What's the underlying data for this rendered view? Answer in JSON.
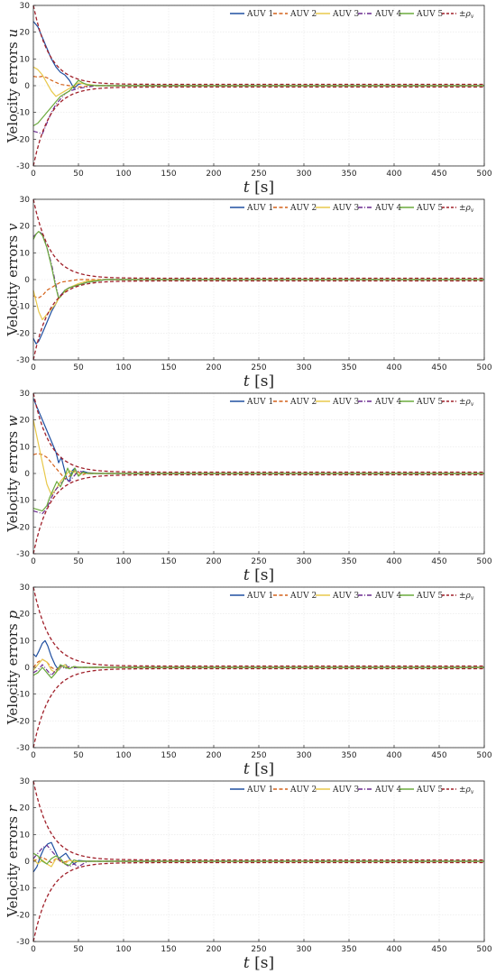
{
  "colors": {
    "AUV 1": "#1f4fa0",
    "AUV 2": "#d4621a",
    "AUV 3": "#e8c84a",
    "AUV 4": "#6a2a8f",
    "AUV 5": "#6aaa3c",
    "rho": "#a0202a"
  },
  "chart_data": [
    {
      "type": "line",
      "xlabel": "t [s]",
      "ylabel": "Velocity errors u",
      "xlim": [
        0,
        500
      ],
      "ylim": [
        -30,
        30
      ],
      "xticks": [
        0,
        50,
        100,
        150,
        200,
        250,
        300,
        350,
        400,
        450,
        500
      ],
      "yticks": [
        -30,
        -20,
        -10,
        0,
        10,
        20,
        30
      ],
      "grid": true,
      "legend_position": "top",
      "series": [
        {
          "name": "AUV 1",
          "style": "solid",
          "x": [
            0,
            5,
            10,
            15,
            20,
            25,
            30,
            35,
            40,
            45,
            50,
            55,
            60,
            70,
            80,
            100,
            500
          ],
          "y": [
            24,
            22,
            18,
            14,
            10,
            7,
            5,
            4,
            2,
            -1,
            0.5,
            1,
            0.3,
            0.1,
            0,
            0,
            0
          ]
        },
        {
          "name": "AUV 2",
          "style": "dashed",
          "x": [
            0,
            5,
            10,
            15,
            20,
            30,
            40,
            50,
            60,
            70,
            80,
            100,
            500
          ],
          "y": [
            3.5,
            3.2,
            3.5,
            3,
            2,
            0.5,
            0,
            -0.5,
            -0.2,
            0,
            0,
            0,
            0
          ]
        },
        {
          "name": "AUV 3",
          "style": "solid",
          "x": [
            0,
            5,
            10,
            15,
            20,
            25,
            30,
            35,
            40,
            45,
            50,
            60,
            70,
            80,
            100,
            500
          ],
          "y": [
            7,
            6,
            4,
            1,
            -2,
            -4,
            -3,
            -2,
            -1,
            0,
            1,
            0.5,
            0,
            0,
            0,
            0
          ]
        },
        {
          "name": "AUV 4",
          "style": "dashdot",
          "x": [
            0,
            5,
            10,
            15,
            20,
            25,
            30,
            35,
            40,
            50,
            60,
            70,
            80,
            100,
            500
          ],
          "y": [
            -17,
            -17.5,
            -18,
            -14,
            -10,
            -7,
            -5,
            -3,
            -2,
            -1,
            -0.5,
            0,
            0,
            0,
            0
          ]
        },
        {
          "name": "AUV 5",
          "style": "solid",
          "x": [
            0,
            5,
            10,
            15,
            20,
            25,
            30,
            35,
            40,
            45,
            50,
            55,
            60,
            70,
            80,
            100,
            500
          ],
          "y": [
            -15,
            -14,
            -12,
            -10,
            -8,
            -6,
            -4,
            -3,
            -2,
            0,
            2,
            1,
            0.3,
            0,
            0,
            0,
            0
          ]
        },
        {
          "name": "±ρv",
          "style": "dashed",
          "band": true,
          "amplitude_start": 30,
          "amplitude_end": 0.5,
          "decay": 0.055
        }
      ]
    },
    {
      "type": "line",
      "xlabel": "t [s]",
      "ylabel": "Velocity errors v",
      "xlim": [
        0,
        500
      ],
      "ylim": [
        -30,
        30
      ],
      "xticks": [
        0,
        50,
        100,
        150,
        200,
        250,
        300,
        350,
        400,
        450,
        500
      ],
      "yticks": [
        -30,
        -20,
        -10,
        0,
        10,
        20,
        30
      ],
      "grid": true,
      "legend_position": "top",
      "series": [
        {
          "name": "AUV 1",
          "style": "solid",
          "x": [
            0,
            3,
            6,
            10,
            15,
            20,
            25,
            28,
            30,
            35,
            40,
            50,
            60,
            70,
            80,
            100,
            500
          ],
          "y": [
            -22,
            -24,
            -23,
            -20,
            -16,
            -12,
            -9,
            -7,
            -6,
            -4,
            -3,
            -2,
            -1,
            -0.5,
            0,
            0,
            0
          ]
        },
        {
          "name": "AUV 2",
          "style": "dashed",
          "x": [
            0,
            5,
            10,
            15,
            20,
            25,
            30,
            40,
            50,
            60,
            80,
            100,
            500
          ],
          "y": [
            -6,
            -7,
            -6,
            -4,
            -3,
            -2,
            -1,
            -0.5,
            0,
            0,
            0,
            0,
            0
          ]
        },
        {
          "name": "AUV 3",
          "style": "solid",
          "x": [
            0,
            3,
            6,
            10,
            15,
            20,
            25,
            30,
            40,
            50,
            60,
            80,
            100,
            500
          ],
          "y": [
            -4,
            -8,
            -12,
            -15,
            -13,
            -11,
            -9,
            -6,
            -3,
            -1.5,
            -0.5,
            0,
            0,
            0
          ]
        },
        {
          "name": "AUV 4",
          "style": "dashdot",
          "x": [
            0,
            3,
            6,
            10,
            15,
            20,
            25,
            28,
            30,
            35,
            40,
            50,
            60,
            80,
            100,
            500
          ],
          "y": [
            16,
            17,
            18,
            17,
            12,
            6,
            -2,
            -7,
            -6,
            -4,
            -3,
            -2,
            -1,
            0,
            0,
            0
          ]
        },
        {
          "name": "AUV 5",
          "style": "solid",
          "x": [
            0,
            3,
            6,
            10,
            15,
            20,
            25,
            28,
            30,
            35,
            40,
            50,
            60,
            80,
            100,
            500
          ],
          "y": [
            15,
            17,
            18,
            16.5,
            12,
            5,
            -3,
            -7,
            -6.5,
            -4,
            -3,
            -2,
            -1,
            0,
            0,
            0
          ]
        },
        {
          "name": "±ρv",
          "style": "dashed",
          "band": true,
          "amplitude_start": 30,
          "amplitude_end": 0.5,
          "decay": 0.055
        }
      ]
    },
    {
      "type": "line",
      "xlabel": "t [s]",
      "ylabel": "Velocity errors w",
      "xlim": [
        0,
        500
      ],
      "ylim": [
        -30,
        30
      ],
      "xticks": [
        0,
        50,
        100,
        150,
        200,
        250,
        300,
        350,
        400,
        450,
        500
      ],
      "yticks": [
        -30,
        -20,
        -10,
        0,
        10,
        20,
        30
      ],
      "grid": true,
      "legend_position": "top",
      "series": [
        {
          "name": "AUV 1",
          "style": "solid",
          "x": [
            0,
            5,
            10,
            15,
            20,
            25,
            28,
            31,
            34,
            37,
            40,
            43,
            46,
            50,
            55,
            60,
            70,
            80,
            100,
            500
          ],
          "y": [
            28,
            24,
            20,
            16,
            12,
            8,
            4,
            6,
            2,
            -2,
            -3,
            1,
            2,
            -1,
            0.8,
            0.3,
            0,
            0,
            0,
            0
          ]
        },
        {
          "name": "AUV 2",
          "style": "dashed",
          "x": [
            0,
            5,
            10,
            15,
            20,
            25,
            30,
            35,
            40,
            45,
            50,
            55,
            60,
            70,
            80,
            100,
            500
          ],
          "y": [
            7,
            7.5,
            7,
            6,
            4,
            2,
            0,
            -2,
            -1,
            1,
            0.5,
            -0.5,
            0.2,
            0,
            0,
            0,
            0
          ]
        },
        {
          "name": "AUV 3",
          "style": "solid",
          "x": [
            0,
            5,
            10,
            15,
            20,
            25,
            30,
            35,
            40,
            45,
            50,
            55,
            60,
            70,
            80,
            100,
            500
          ],
          "y": [
            20,
            12,
            4,
            -4,
            -8,
            -6,
            -3,
            -1,
            1,
            0.5,
            -0.5,
            0.3,
            0,
            0,
            0,
            0,
            0
          ]
        },
        {
          "name": "AUV 4",
          "style": "dashdot",
          "x": [
            0,
            5,
            10,
            15,
            20,
            25,
            30,
            35,
            40,
            45,
            50,
            55,
            60,
            70,
            80,
            100,
            500
          ],
          "y": [
            -14,
            -14.5,
            -15,
            -13,
            -9,
            -6,
            -4,
            -2,
            -3,
            -1,
            1,
            0.5,
            0,
            0,
            0,
            0,
            0
          ]
        },
        {
          "name": "AUV 5",
          "style": "solid",
          "x": [
            0,
            5,
            10,
            15,
            18,
            22,
            26,
            30,
            34,
            38,
            42,
            46,
            50,
            55,
            60,
            70,
            80,
            100,
            500
          ],
          "y": [
            -13,
            -13.5,
            -14,
            -12,
            -9,
            -6,
            -3,
            -5,
            -2,
            2,
            -1,
            2,
            -1,
            0.5,
            0,
            0,
            0,
            0,
            0
          ]
        },
        {
          "name": "±ρv",
          "style": "dashed",
          "band": true,
          "amplitude_start": 30,
          "amplitude_end": 0.5,
          "decay": 0.055
        }
      ]
    },
    {
      "type": "line",
      "xlabel": "t [s]",
      "ylabel": "Velocity errors p",
      "xlim": [
        0,
        500
      ],
      "ylim": [
        -30,
        30
      ],
      "xticks": [
        0,
        50,
        100,
        150,
        200,
        250,
        300,
        350,
        400,
        450,
        500
      ],
      "yticks": [
        -30,
        -20,
        -10,
        0,
        10,
        20,
        30
      ],
      "grid": true,
      "legend_position": "top",
      "series": [
        {
          "name": "AUV 1",
          "style": "solid",
          "x": [
            0,
            3,
            6,
            10,
            13,
            16,
            20,
            24,
            28,
            32,
            36,
            40,
            45,
            50,
            60,
            80,
            100,
            500
          ],
          "y": [
            5,
            4,
            6,
            9,
            10,
            8,
            4,
            1,
            -1,
            0.5,
            1,
            -0.5,
            0.3,
            0,
            0,
            0,
            0,
            0
          ]
        },
        {
          "name": "AUV 2",
          "style": "dashed",
          "x": [
            0,
            5,
            10,
            15,
            20,
            25,
            30,
            35,
            40,
            45,
            50,
            60,
            80,
            100,
            500
          ],
          "y": [
            0,
            2,
            3,
            2,
            0,
            -1,
            0.5,
            0.3,
            -0.3,
            0.2,
            0,
            0,
            0,
            0,
            0
          ]
        },
        {
          "name": "AUV 3",
          "style": "solid",
          "x": [
            0,
            5,
            10,
            15,
            20,
            25,
            30,
            35,
            40,
            45,
            50,
            60,
            80,
            100,
            500
          ],
          "y": [
            -1,
            1,
            3,
            2,
            -1,
            -2,
            0,
            1,
            -0.5,
            0.3,
            0,
            0,
            0,
            0,
            0
          ]
        },
        {
          "name": "AUV 4",
          "style": "dashdot",
          "x": [
            0,
            5,
            10,
            15,
            20,
            25,
            30,
            35,
            40,
            45,
            50,
            60,
            80,
            100,
            500
          ],
          "y": [
            -2,
            -1,
            1,
            -1,
            -3,
            -1,
            0.5,
            -0.5,
            0.3,
            -0.2,
            0,
            0,
            0,
            0,
            0
          ]
        },
        {
          "name": "AUV 5",
          "style": "solid",
          "x": [
            0,
            5,
            10,
            15,
            20,
            25,
            30,
            35,
            40,
            45,
            50,
            60,
            80,
            100,
            500
          ],
          "y": [
            -3,
            -2,
            0,
            -2,
            -4,
            -2,
            1,
            0,
            -0.5,
            0.3,
            0,
            0,
            0,
            0,
            0
          ]
        },
        {
          "name": "±ρv",
          "style": "dashed",
          "band": true,
          "amplitude_start": 30,
          "amplitude_end": 0.5,
          "decay": 0.055
        }
      ]
    },
    {
      "type": "line",
      "xlabel": "t [s]",
      "ylabel": "Velocity errors r",
      "xlim": [
        0,
        500
      ],
      "ylim": [
        -30,
        30
      ],
      "xticks": [
        0,
        50,
        100,
        150,
        200,
        250,
        300,
        350,
        400,
        450,
        500
      ],
      "yticks": [
        -30,
        -20,
        -10,
        0,
        10,
        20,
        30
      ],
      "grid": true,
      "legend_position": "top",
      "series": [
        {
          "name": "AUV 1",
          "style": "solid",
          "x": [
            0,
            4,
            8,
            12,
            16,
            20,
            24,
            28,
            32,
            36,
            40,
            45,
            50,
            60,
            80,
            100,
            500
          ],
          "y": [
            -4,
            -2,
            2,
            5,
            6.5,
            7,
            4,
            1,
            2,
            3,
            1,
            -1,
            0.3,
            0,
            0,
            0,
            0
          ]
        },
        {
          "name": "AUV 2",
          "style": "dashed",
          "x": [
            0,
            5,
            10,
            15,
            20,
            25,
            30,
            35,
            40,
            45,
            50,
            60,
            80,
            100,
            500
          ],
          "y": [
            0,
            1,
            1.5,
            0.5,
            -0.5,
            1,
            0.3,
            -0.3,
            0.5,
            -0.2,
            0,
            0,
            0,
            0,
            0
          ]
        },
        {
          "name": "AUV 3",
          "style": "solid",
          "x": [
            0,
            5,
            10,
            15,
            20,
            25,
            30,
            35,
            40,
            45,
            50,
            60,
            80,
            100,
            500
          ],
          "y": [
            1,
            -1,
            0.5,
            -1,
            -2,
            1,
            0,
            -1,
            0.5,
            -0.3,
            0,
            0,
            0,
            0,
            0
          ]
        },
        {
          "name": "AUV 4",
          "style": "dashdot",
          "x": [
            0,
            5,
            10,
            15,
            20,
            25,
            30,
            35,
            40,
            45,
            50,
            55,
            60,
            80,
            100,
            500
          ],
          "y": [
            1,
            3,
            5,
            6,
            4,
            2,
            0,
            -1,
            -2,
            -1,
            -2,
            -1,
            0,
            0,
            0,
            0
          ]
        },
        {
          "name": "AUV 5",
          "style": "solid",
          "x": [
            0,
            5,
            10,
            15,
            20,
            25,
            30,
            35,
            40,
            45,
            50,
            60,
            80,
            100,
            500
          ],
          "y": [
            3,
            2,
            0,
            -1,
            1,
            2,
            1,
            -1,
            -1.5,
            0.5,
            0,
            0,
            0,
            0,
            0
          ]
        },
        {
          "name": "±ρv",
          "style": "dashed",
          "band": true,
          "amplitude_start": 30,
          "amplitude_end": 0.5,
          "decay": 0.055
        }
      ]
    }
  ]
}
